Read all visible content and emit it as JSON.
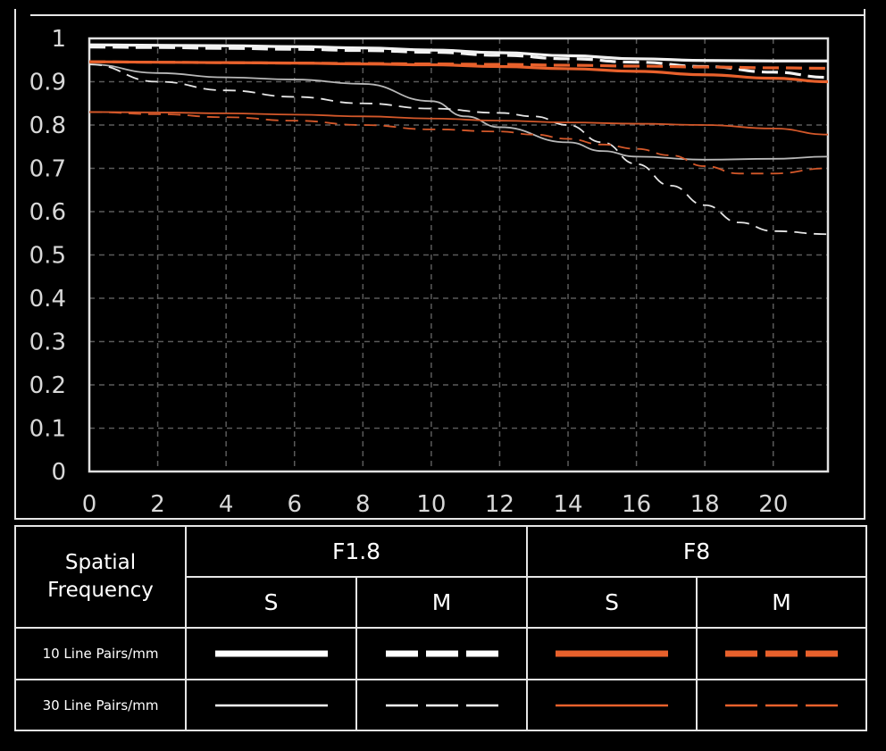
{
  "chart_data": {
    "type": "line",
    "title": "",
    "xlabel": "",
    "ylabel": "",
    "xlim": [
      0,
      21.6
    ],
    "ylim": [
      0,
      1
    ],
    "xticks": [
      0,
      2,
      4,
      6,
      8,
      10,
      12,
      14,
      16,
      18,
      20
    ],
    "yticks": [
      0,
      0.1,
      0.2,
      0.3,
      0.4,
      0.5,
      0.6,
      0.7,
      0.8,
      0.9,
      1
    ],
    "grid": true,
    "series": [
      {
        "aperture": "F1.8",
        "direction": "S",
        "frequency": "10 Line Pairs/mm",
        "color": "#f2f2f2",
        "dashed": false,
        "width": "bold",
        "x": [
          0,
          2,
          4,
          6,
          8,
          10,
          12,
          14,
          16,
          18,
          20,
          21.6
        ],
        "y": [
          0.985,
          0.984,
          0.983,
          0.981,
          0.978,
          0.973,
          0.967,
          0.96,
          0.953,
          0.949,
          0.948,
          0.948
        ]
      },
      {
        "aperture": "F1.8",
        "direction": "M",
        "frequency": "10 Line Pairs/mm",
        "color": "#f2f2f2",
        "dashed": true,
        "width": "bold",
        "x": [
          0,
          2,
          4,
          6,
          8,
          10,
          12,
          14,
          16,
          18,
          20,
          21.6
        ],
        "y": [
          0.98,
          0.979,
          0.977,
          0.975,
          0.972,
          0.968,
          0.961,
          0.953,
          0.945,
          0.935,
          0.922,
          0.91
        ]
      },
      {
        "aperture": "F1.8",
        "direction": "S",
        "frequency": "30 Line Pairs/mm",
        "color": "#b8b8b8",
        "dashed": false,
        "width": "thin",
        "x": [
          0,
          2,
          4,
          6,
          8,
          10,
          11,
          12,
          14,
          15,
          16,
          18,
          20,
          21.6
        ],
        "y": [
          0.94,
          0.92,
          0.91,
          0.905,
          0.895,
          0.855,
          0.82,
          0.795,
          0.76,
          0.74,
          0.727,
          0.72,
          0.722,
          0.727
        ]
      },
      {
        "aperture": "F1.8",
        "direction": "M",
        "frequency": "30 Line Pairs/mm",
        "color": "#e6e6e6",
        "dashed": true,
        "width": "thin",
        "x": [
          0,
          2,
          4,
          6,
          8,
          10,
          12,
          13,
          14,
          15,
          16,
          17,
          18,
          19,
          20,
          21.6
        ],
        "y": [
          0.94,
          0.9,
          0.88,
          0.865,
          0.85,
          0.838,
          0.828,
          0.82,
          0.8,
          0.76,
          0.71,
          0.66,
          0.615,
          0.575,
          0.555,
          0.548
        ]
      },
      {
        "aperture": "F8",
        "direction": "S",
        "frequency": "10 Line Pairs/mm",
        "color": "#e8612c",
        "dashed": false,
        "width": "bold",
        "x": [
          0,
          2,
          4,
          6,
          8,
          10,
          12,
          14,
          16,
          18,
          20,
          21.6
        ],
        "y": [
          0.946,
          0.945,
          0.944,
          0.943,
          0.941,
          0.939,
          0.935,
          0.93,
          0.924,
          0.916,
          0.908,
          0.9
        ]
      },
      {
        "aperture": "F8",
        "direction": "M",
        "frequency": "10 Line Pairs/mm",
        "color": "#e8612c",
        "dashed": true,
        "width": "bold",
        "x": [
          0,
          2,
          4,
          6,
          8,
          10,
          12,
          14,
          16,
          18,
          20,
          21.6
        ],
        "y": [
          0.946,
          0.945,
          0.944,
          0.943,
          0.942,
          0.941,
          0.94,
          0.938,
          0.936,
          0.934,
          0.932,
          0.931
        ]
      },
      {
        "aperture": "F8",
        "direction": "S",
        "frequency": "30 Line Pairs/mm",
        "color": "#d4582a",
        "dashed": false,
        "width": "thin",
        "x": [
          0,
          2,
          4,
          6,
          8,
          10,
          12,
          14,
          16,
          18,
          20,
          21.6
        ],
        "y": [
          0.83,
          0.829,
          0.827,
          0.824,
          0.82,
          0.815,
          0.81,
          0.806,
          0.803,
          0.8,
          0.792,
          0.778
        ]
      },
      {
        "aperture": "F8",
        "direction": "M",
        "frequency": "30 Line Pairs/mm",
        "color": "#d4582a",
        "dashed": true,
        "width": "thin",
        "x": [
          0,
          2,
          4,
          6,
          8,
          10,
          12,
          13,
          14,
          15,
          16,
          17,
          18,
          19,
          20,
          21.6
        ],
        "y": [
          0.83,
          0.825,
          0.818,
          0.81,
          0.8,
          0.79,
          0.785,
          0.778,
          0.768,
          0.755,
          0.745,
          0.73,
          0.705,
          0.688,
          0.688,
          0.7
        ]
      }
    ]
  },
  "legend": {
    "corner_label": "Spatial\nFrequency",
    "apertures": [
      "F1.8",
      "F8"
    ],
    "directions": [
      "S",
      "M",
      "S",
      "M"
    ],
    "rows": [
      "10 Line Pairs/mm",
      "30 Line Pairs/mm"
    ],
    "colors": {
      "f18": "#ffffff",
      "f8": "#e8612c"
    }
  }
}
